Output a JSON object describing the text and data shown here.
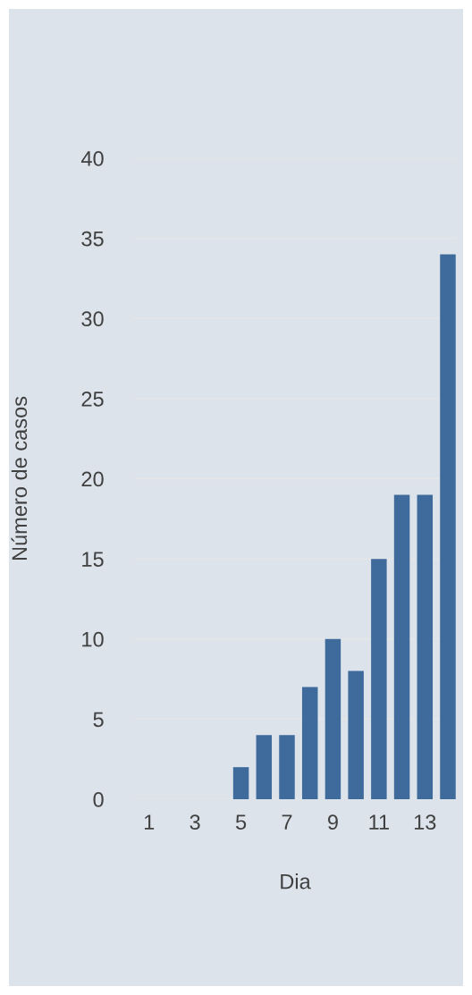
{
  "chart_data": {
    "type": "bar",
    "xlabel": "Dia",
    "ylabel": "Número de casos",
    "categories": [
      "1",
      null,
      "3",
      null,
      "5",
      null,
      "7",
      null,
      "9",
      null,
      "11",
      null,
      "13",
      null
    ],
    "values": [
      0,
      0,
      0,
      0,
      2,
      4,
      4,
      7,
      10,
      8,
      15,
      19,
      19,
      34
    ],
    "color": "#3e6b9b",
    "ylim": [
      0,
      40
    ],
    "yticks": [
      0,
      5,
      10,
      15,
      20,
      25,
      30,
      35,
      40
    ],
    "grid": "y"
  }
}
